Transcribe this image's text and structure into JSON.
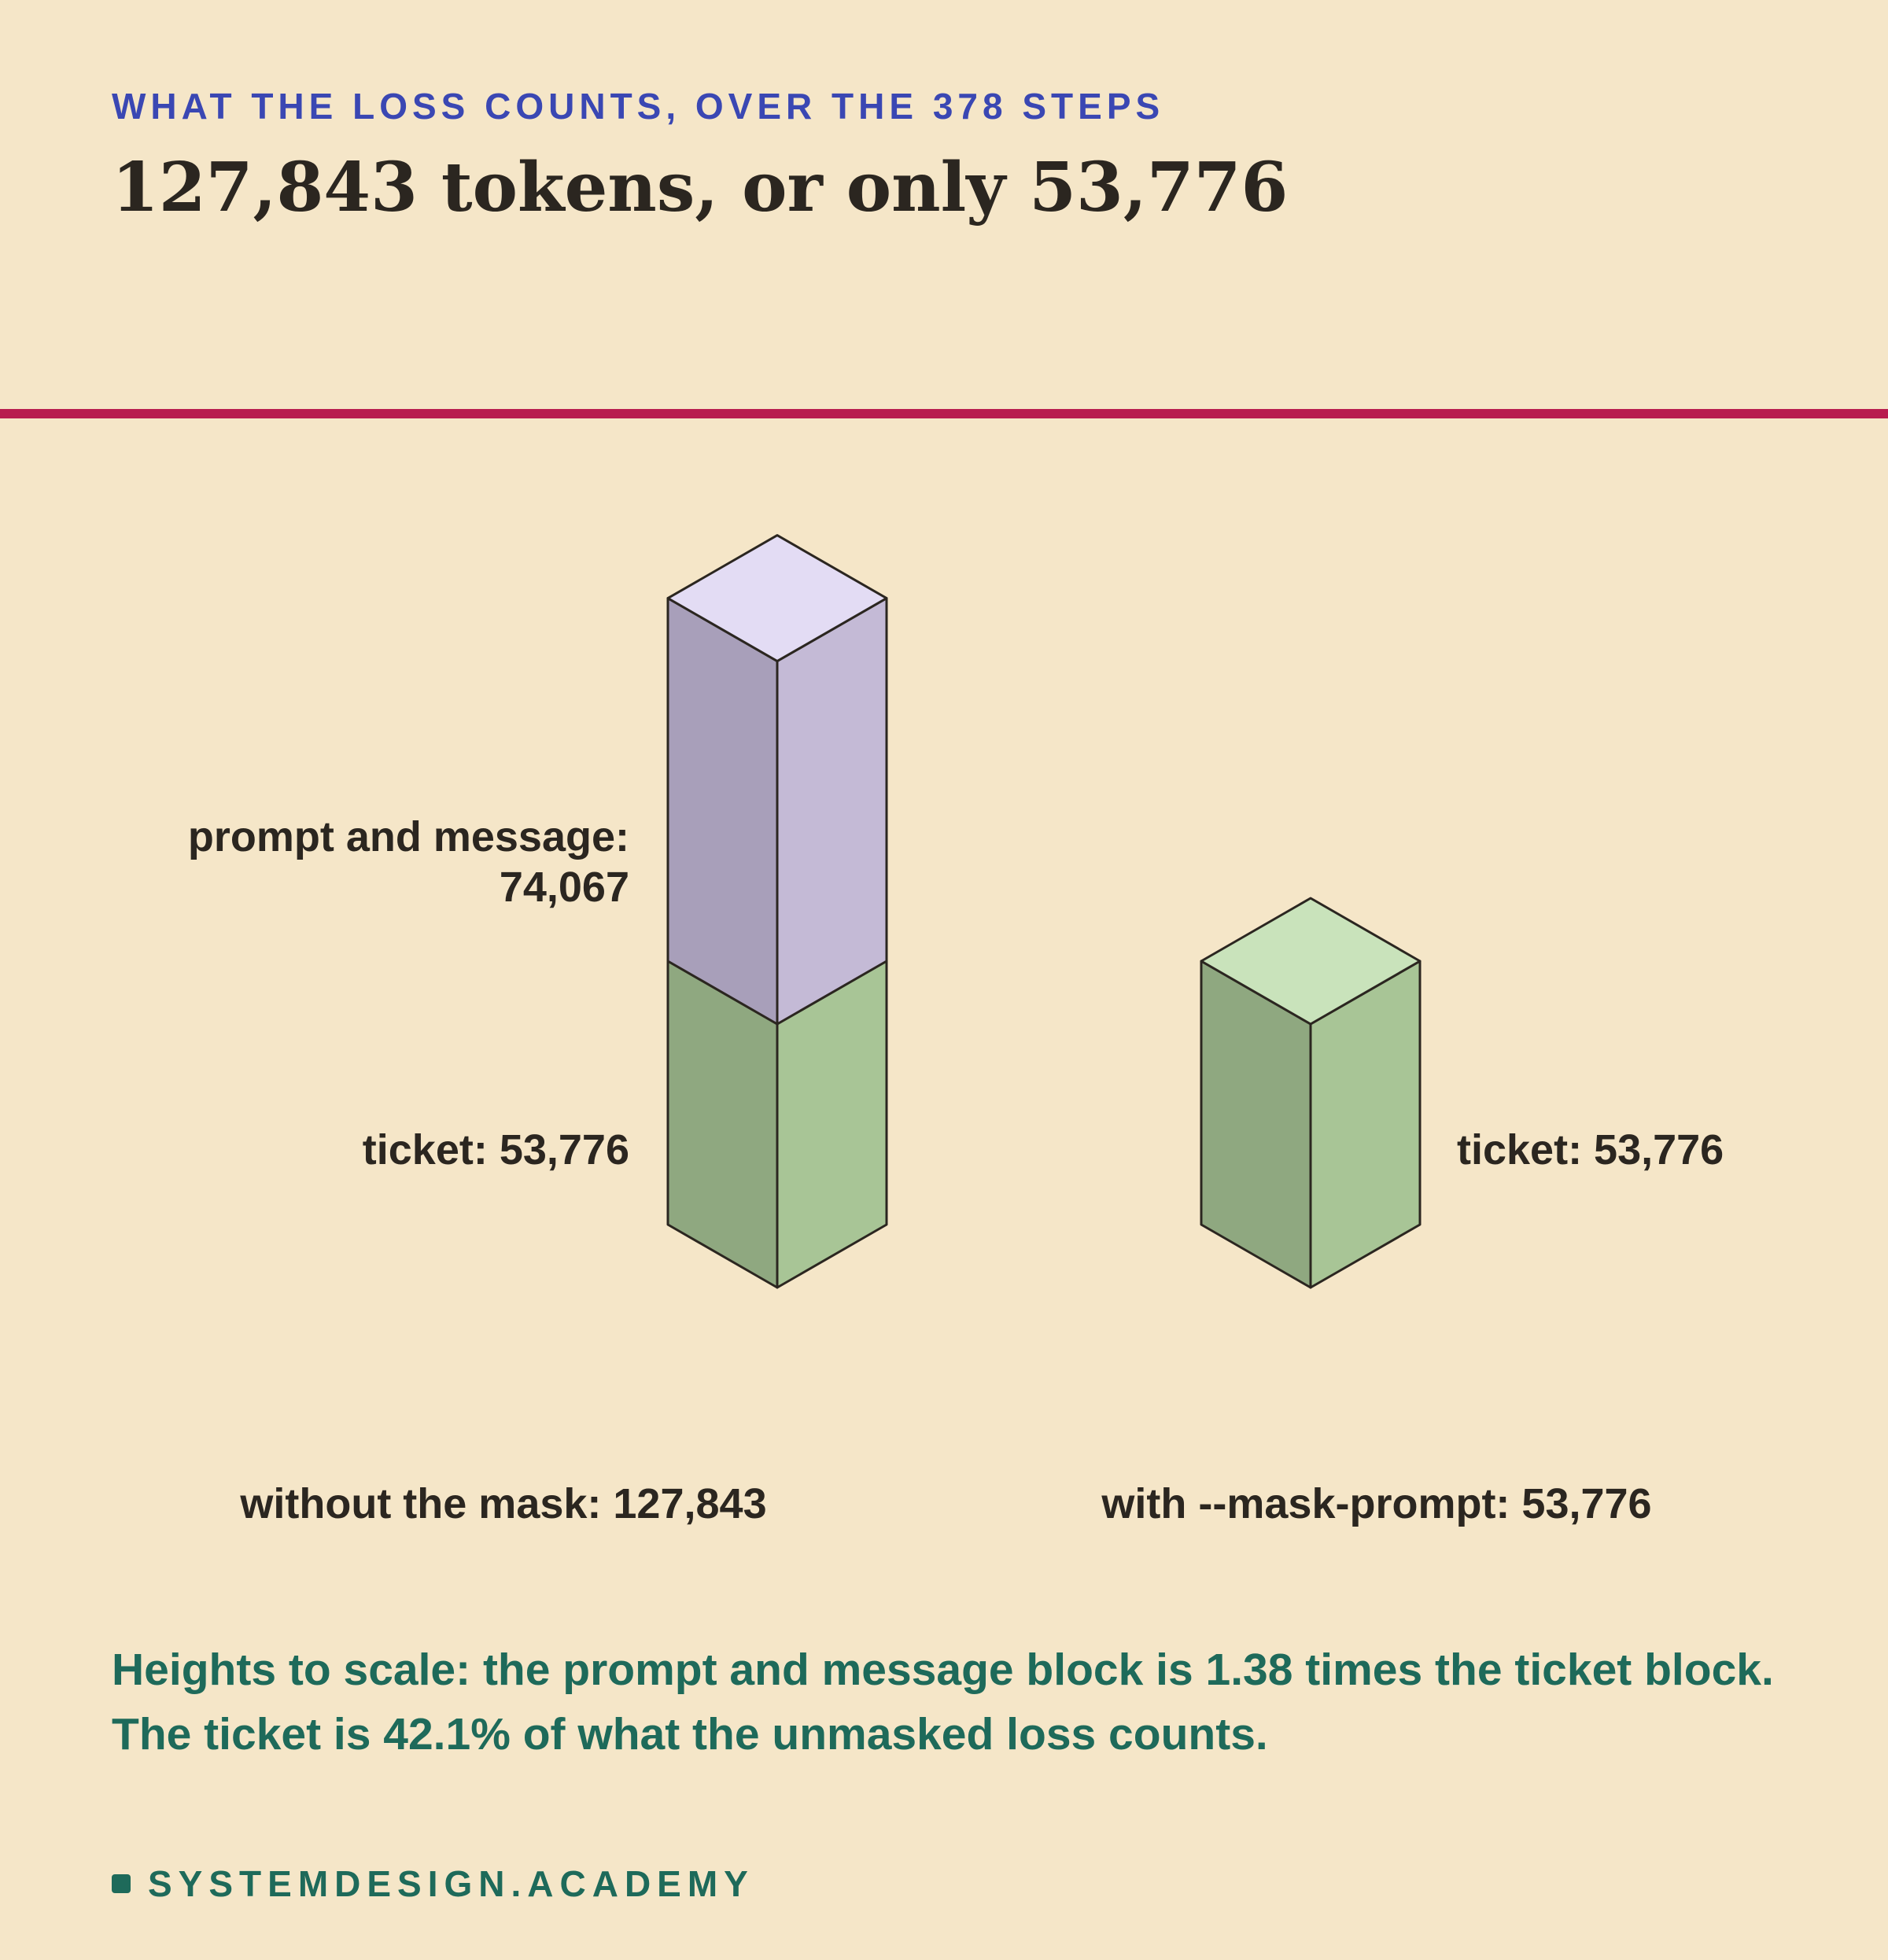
{
  "header": {
    "kicker": "WHAT THE LOSS COUNTS, OVER THE 378 STEPS",
    "headline": "127,843 tokens, or only 53,776"
  },
  "colors": {
    "background": "#f5e6c8",
    "rule": "#b81d4f",
    "kicker": "#3a47b3",
    "accent_text": "#1e6a5a",
    "prompt_front": "#a89fba",
    "prompt_side": "#c4bad6",
    "prompt_top": "#e3dcf4",
    "ticket_front": "#8fa880",
    "ticket_side": "#a8c596",
    "ticket_top": "#c9e3bb",
    "outline": "#2b2620"
  },
  "chart_data": {
    "type": "bar",
    "style": "isometric stacked",
    "categories": [
      "without the mask: 127,843",
      "with --mask-prompt: 53,776"
    ],
    "series": [
      {
        "name": "ticket",
        "values": [
          53776,
          53776
        ]
      },
      {
        "name": "prompt and message",
        "values": [
          74067,
          0
        ]
      }
    ],
    "labels": {
      "prompt_line1": "prompt and message:",
      "prompt_line2": "74,067",
      "ticket_left": "ticket: 53,776",
      "ticket_right": "ticket: 53,776"
    }
  },
  "footer": {
    "note": "Heights to scale: the prompt and message block is 1.38 times the ticket block. The ticket is 42.1% of what the unmasked loss counts.",
    "brand": "SYSTEMDESIGN.ACADEMY"
  }
}
